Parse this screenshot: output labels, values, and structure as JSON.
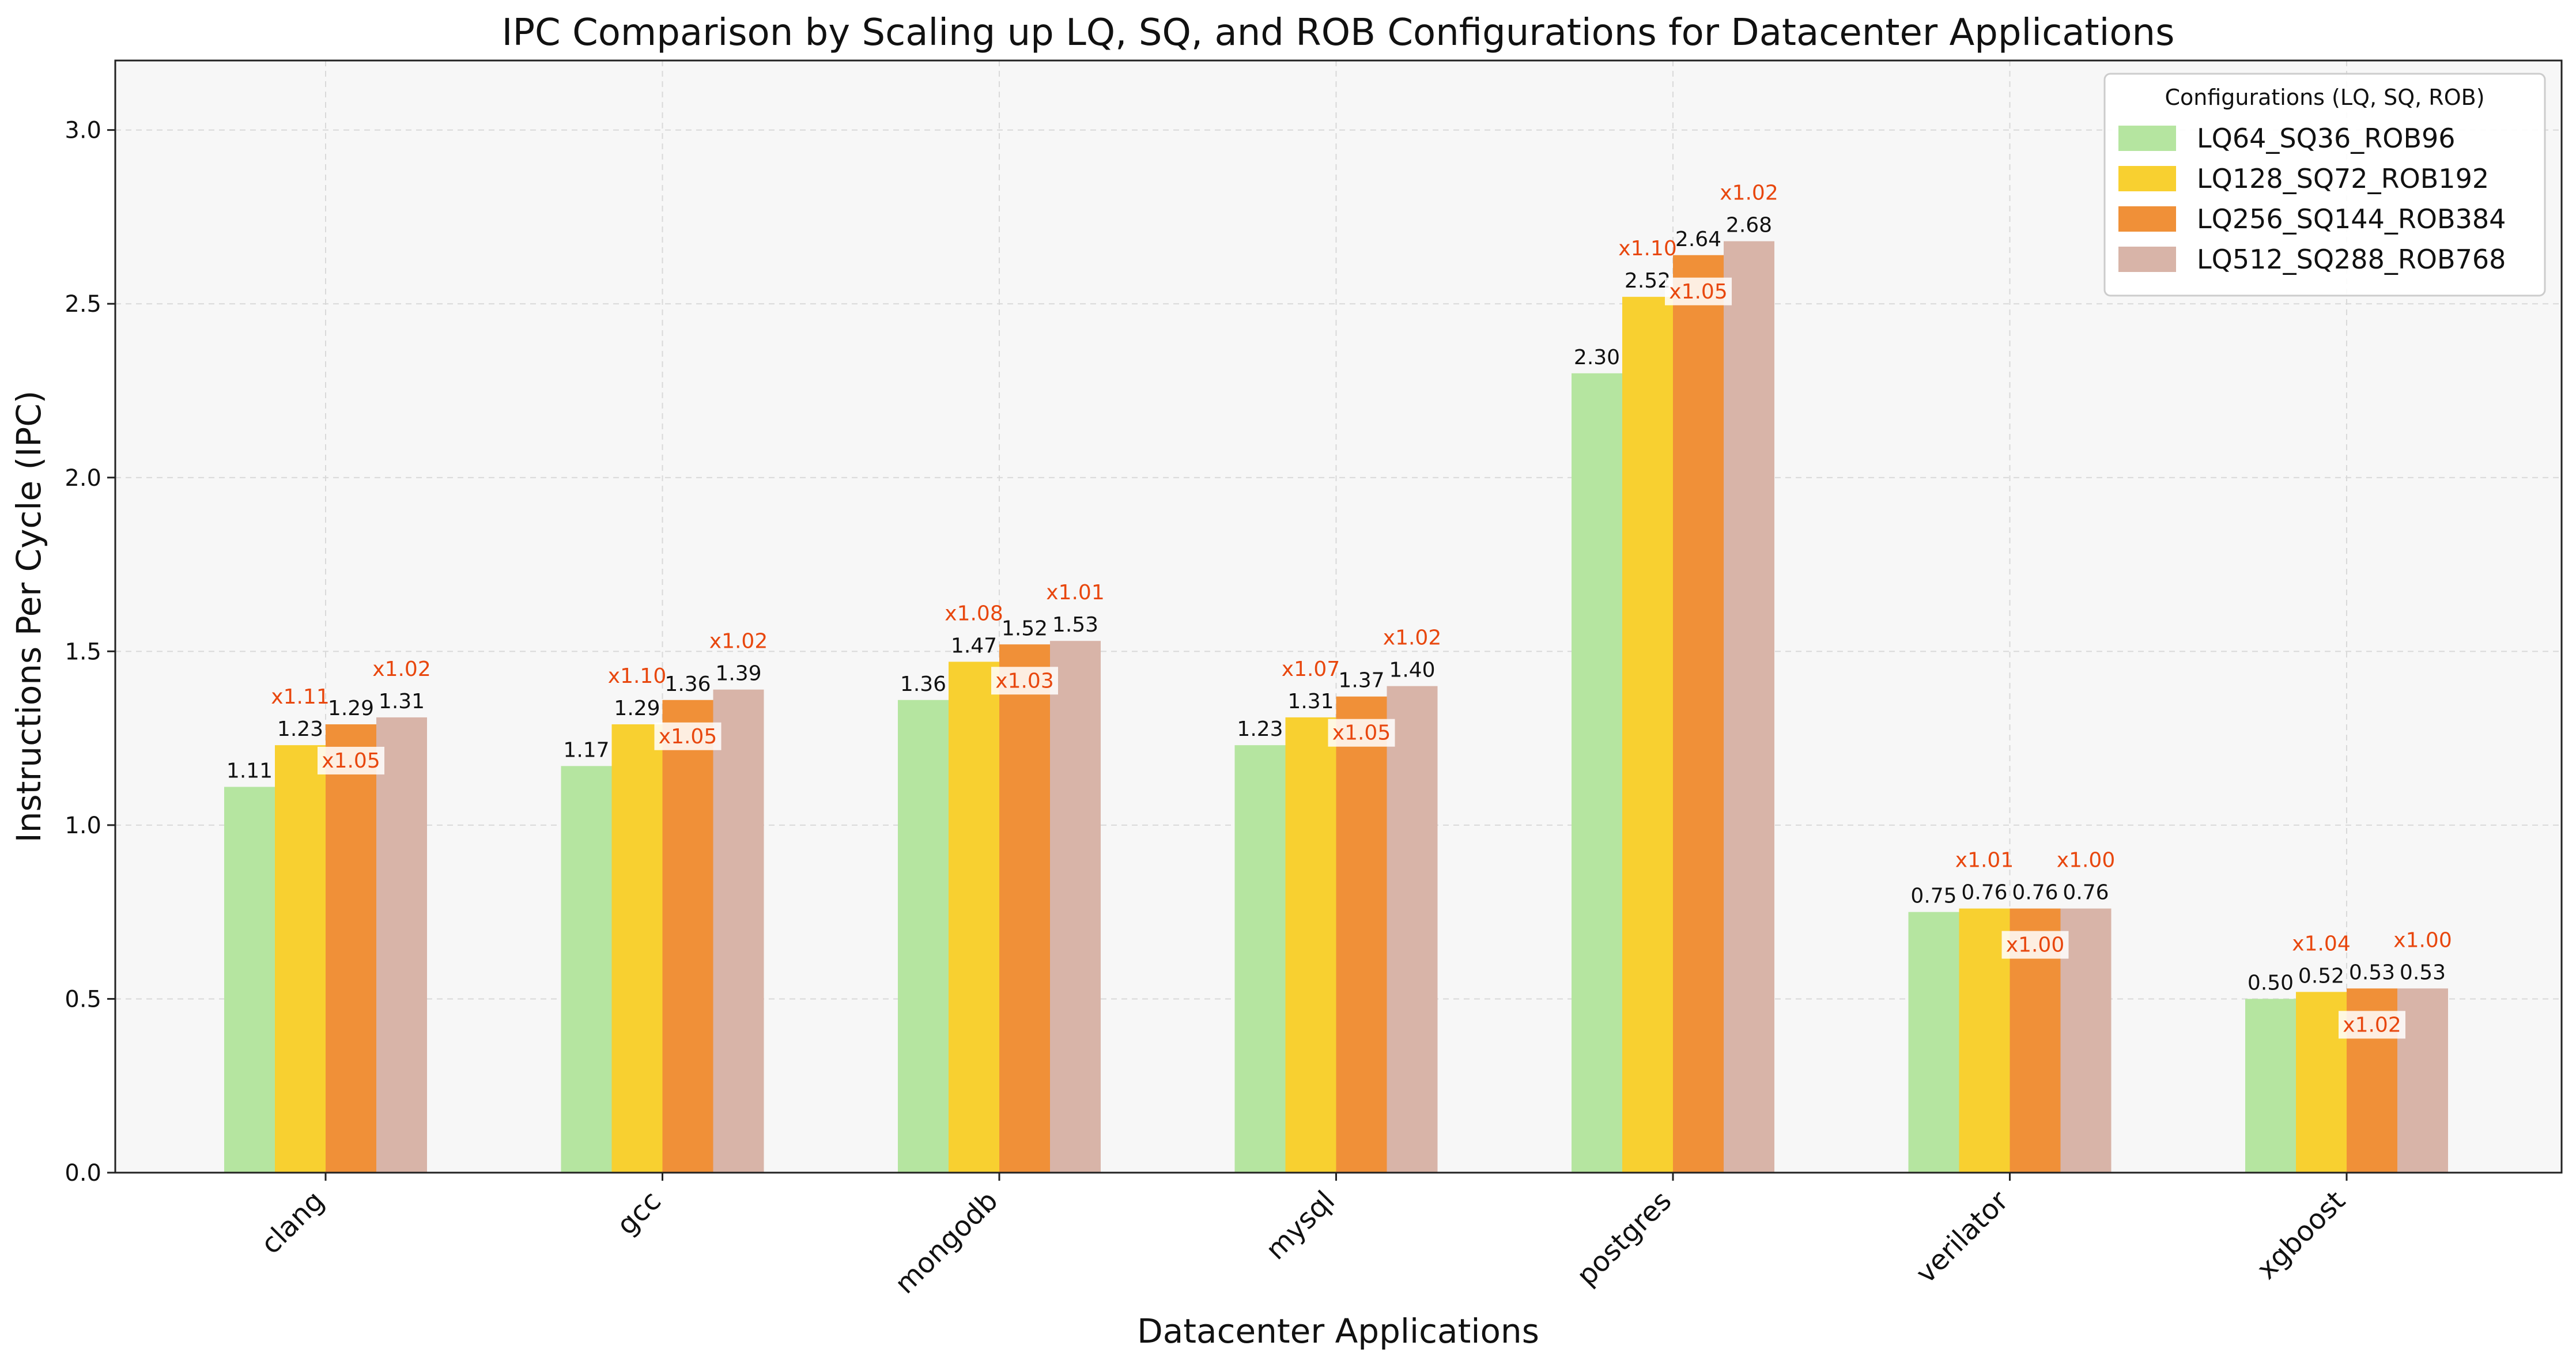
{
  "chart_data": {
    "type": "bar",
    "title": "IPC Comparison by Scaling up LQ, SQ, and ROB Configurations for Datacenter Applications",
    "xlabel": "Datacenter Applications",
    "ylabel": "Instructions Per Cycle (IPC)",
    "ylim": [
      0,
      3.2
    ],
    "yticks": [
      "0.0",
      "0.5",
      "1.0",
      "1.5",
      "2.0",
      "2.5",
      "3.0"
    ],
    "grid": true,
    "legend": {
      "title": "Configurations (LQ, SQ, ROB)",
      "position": "top-right"
    },
    "categories": [
      "clang",
      "gcc",
      "mongodb",
      "mysql",
      "postgres",
      "verilator",
      "xgboost"
    ],
    "series": [
      {
        "name": "LQ64_SQ36_ROB96",
        "color": "#b5e5a0",
        "values": [
          1.11,
          1.17,
          1.36,
          1.23,
          2.3,
          0.75,
          0.5
        ],
        "labels": [
          "1.11",
          "1.17",
          "1.36",
          "1.23",
          "2.30",
          "0.75",
          "0.50"
        ]
      },
      {
        "name": "LQ128_SQ72_ROB192",
        "color": "#f8d030",
        "values": [
          1.23,
          1.29,
          1.47,
          1.31,
          2.52,
          0.76,
          0.52
        ],
        "labels": [
          "1.23",
          "1.29",
          "1.47",
          "1.31",
          "2.52",
          "0.76",
          "0.52"
        ]
      },
      {
        "name": "LQ256_SQ144_ROB384",
        "color": "#f09038",
        "values": [
          1.29,
          1.36,
          1.52,
          1.37,
          2.64,
          0.76,
          0.53
        ],
        "labels": [
          "1.29",
          "1.36",
          "1.52",
          "1.37",
          "2.64",
          "0.76",
          "0.53"
        ]
      },
      {
        "name": "LQ512_SQ288_ROB768",
        "color": "#d8b4a8",
        "values": [
          1.31,
          1.39,
          1.53,
          1.4,
          2.68,
          0.76,
          0.53
        ],
        "labels": [
          "1.31",
          "1.39",
          "1.53",
          "1.40",
          "2.68",
          "0.76",
          "0.53"
        ]
      }
    ],
    "speedups": {
      "color": "#e8470e",
      "items": [
        {
          "category": 0,
          "series": 1,
          "label": "x1.11",
          "boxed": false
        },
        {
          "category": 0,
          "series": 2,
          "label": "x1.05",
          "boxed": true
        },
        {
          "category": 0,
          "series": 3,
          "label": "x1.02",
          "boxed": false
        },
        {
          "category": 1,
          "series": 1,
          "label": "x1.10",
          "boxed": false
        },
        {
          "category": 1,
          "series": 2,
          "label": "x1.05",
          "boxed": true
        },
        {
          "category": 1,
          "series": 3,
          "label": "x1.02",
          "boxed": false
        },
        {
          "category": 2,
          "series": 1,
          "label": "x1.08",
          "boxed": false
        },
        {
          "category": 2,
          "series": 2,
          "label": "x1.03",
          "boxed": true
        },
        {
          "category": 2,
          "series": 3,
          "label": "x1.01",
          "boxed": false
        },
        {
          "category": 3,
          "series": 1,
          "label": "x1.07",
          "boxed": false
        },
        {
          "category": 3,
          "series": 2,
          "label": "x1.05",
          "boxed": true
        },
        {
          "category": 3,
          "series": 3,
          "label": "x1.02",
          "boxed": false
        },
        {
          "category": 4,
          "series": 1,
          "label": "x1.10",
          "boxed": false
        },
        {
          "category": 4,
          "series": 2,
          "label": "x1.05",
          "boxed": true
        },
        {
          "category": 4,
          "series": 3,
          "label": "x1.02",
          "boxed": false
        },
        {
          "category": 5,
          "series": 1,
          "label": "x1.01",
          "boxed": false
        },
        {
          "category": 5,
          "series": 2,
          "label": "x1.00",
          "boxed": true
        },
        {
          "category": 5,
          "series": 3,
          "label": "x1.00",
          "boxed": false
        },
        {
          "category": 6,
          "series": 1,
          "label": "x1.04",
          "boxed": false
        },
        {
          "category": 6,
          "series": 2,
          "label": "x1.02",
          "boxed": true
        },
        {
          "category": 6,
          "series": 3,
          "label": "x1.00",
          "boxed": false
        }
      ]
    }
  }
}
